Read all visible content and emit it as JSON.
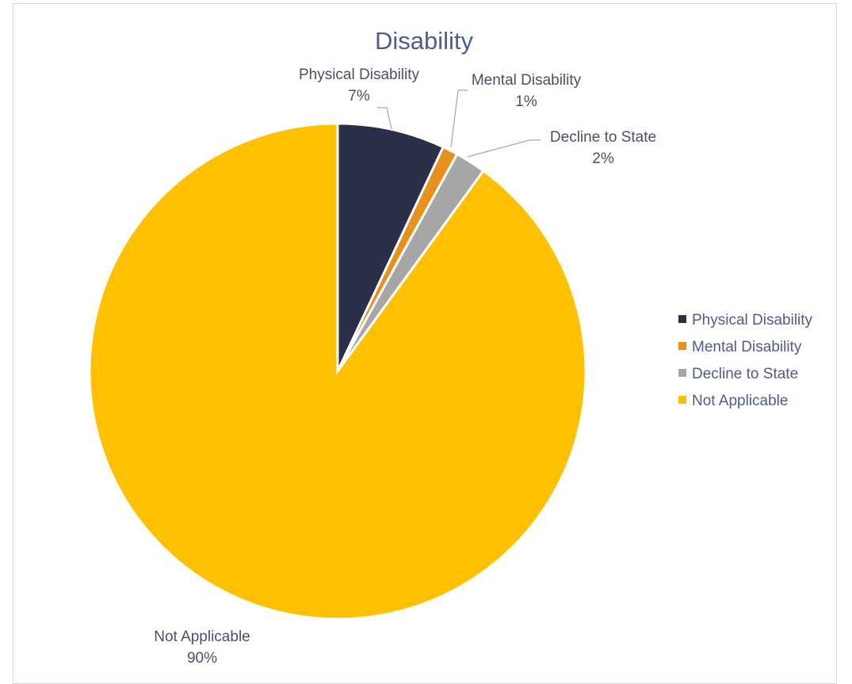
{
  "chart_data": {
    "type": "pie",
    "title": "Disability",
    "legend_position": "right",
    "slices": [
      {
        "label": "Physical Disability",
        "value": 7,
        "display": "7%",
        "color": "#2b2f47"
      },
      {
        "label": "Mental Disability",
        "value": 1,
        "display": "1%",
        "color": "#e8901e"
      },
      {
        "label": "Decline to State",
        "value": 2,
        "display": "2%",
        "color": "#a6a6a6"
      },
      {
        "label": "Not Applicable",
        "value": 90,
        "display": "90%",
        "color": "#ffc000"
      }
    ]
  }
}
